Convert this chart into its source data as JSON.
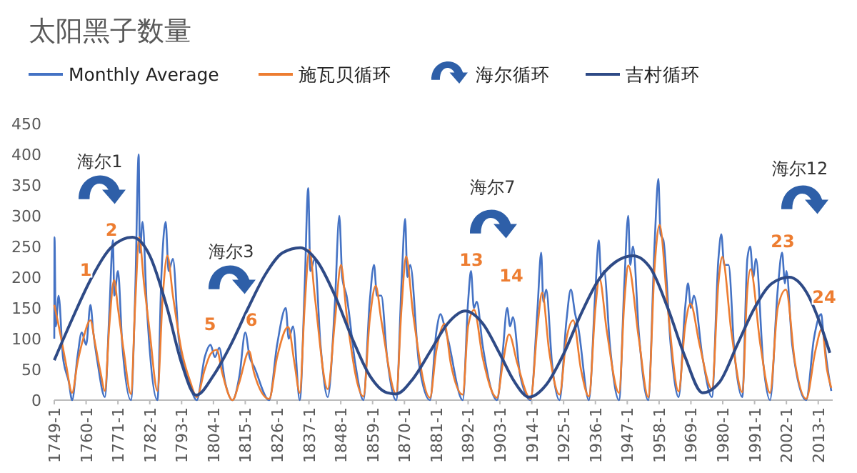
{
  "chart_data": {
    "type": "line",
    "title": "太阳黑子数量",
    "xlim": [
      "1749-01",
      "2018-01"
    ],
    "xticks": [
      {
        "value": "1749-01",
        "label": "1749-1"
      },
      {
        "value": "1760-01",
        "label": "1760-1"
      },
      {
        "value": "1771-01",
        "label": "1771-1"
      },
      {
        "value": "1782-01",
        "label": "1782-1"
      },
      {
        "value": "1793-01",
        "label": "1793-1"
      },
      {
        "value": "1804-01",
        "label": "1804-1"
      },
      {
        "value": "1815-01",
        "label": "1815-1"
      },
      {
        "value": "1826-01",
        "label": "1826-1"
      },
      {
        "value": "1837-01",
        "label": "1837-1"
      },
      {
        "value": "1848-01",
        "label": "1848-1"
      },
      {
        "value": "1859-01",
        "label": "1859-1"
      },
      {
        "value": "1870-01",
        "label": "1870-1"
      },
      {
        "value": "1881-01",
        "label": "1881-1"
      },
      {
        "value": "1892-01",
        "label": "1892-1"
      },
      {
        "value": "1903-01",
        "label": "1903-1"
      },
      {
        "value": "1914-01",
        "label": "1914-1"
      },
      {
        "value": "1925-01",
        "label": "1925-1"
      },
      {
        "value": "1936-01",
        "label": "1936-1"
      },
      {
        "value": "1947-01",
        "label": "1947-1"
      },
      {
        "value": "1958-01",
        "label": "1958-1"
      },
      {
        "value": "1969-01",
        "label": "1969-1"
      },
      {
        "value": "1980-01",
        "label": "1980-1"
      },
      {
        "value": "1991-01",
        "label": "1991-1"
      },
      {
        "value": "2002-01",
        "label": "2002-1"
      },
      {
        "value": "2013-01",
        "label": "2013-1"
      }
    ],
    "ylim": [
      0,
      450
    ],
    "yticks": [
      0,
      50,
      100,
      150,
      200,
      250,
      300,
      350,
      400,
      450
    ],
    "grid": false,
    "legend": "top",
    "marker": "none",
    "series": [
      {
        "name": "Monthly Average",
        "color": "#4472c4",
        "x": [
          "1749-01",
          "1749-02",
          "1749-07",
          "1750-07",
          "1752-01",
          "1754-01",
          "1755-03",
          "1757-01",
          "1758-07",
          "1760-01",
          "1761-07",
          "1762-07",
          "1764-01",
          "1766-07",
          "1768-01",
          "1769-04",
          "1769-10",
          "1771-01",
          "1772-07",
          "1775-07",
          "1777-01",
          "1778-03",
          "1778-08",
          "1779-07",
          "1781-01",
          "1784-09",
          "1786-01",
          "1787-07",
          "1788-07",
          "1790-01",
          "1792-01",
          "1795-01",
          "1798-04",
          "1801-01",
          "1803-01",
          "1804-07",
          "1806-01",
          "1808-01",
          "1810-08",
          "1813-01",
          "1815-01",
          "1816-07",
          "1818-01",
          "1823-04",
          "1826-01",
          "1829-01",
          "1830-01",
          "1831-07",
          "1833-11",
          "1835-07",
          "1836-10",
          "1837-07",
          "1839-01",
          "1841-01",
          "1843-07",
          "1846-01",
          "1847-07",
          "1848-07",
          "1850-01",
          "1853-01",
          "1855-11",
          "1858-01",
          "1859-07",
          "1860-07",
          "1862-01",
          "1864-01",
          "1867-03",
          "1869-01",
          "1870-04",
          "1871-01",
          "1872-01",
          "1875-01",
          "1878-11",
          "1881-01",
          "1882-07",
          "1883-11",
          "1885-01",
          "1890-03",
          "1892-01",
          "1893-01",
          "1894-01",
          "1895-01",
          "1897-01",
          "1902-01",
          "1904-01",
          "1905-07",
          "1906-07",
          "1907-07",
          "1910-01",
          "1913-08",
          "1916-01",
          "1917-04",
          "1918-01",
          "1919-01",
          "1921-01",
          "1923-08",
          "1926-01",
          "1927-07",
          "1929-01",
          "1930-01",
          "1933-10",
          "1936-01",
          "1937-03",
          "1938-01",
          "1939-01",
          "1941-01",
          "1944-03",
          "1946-01",
          "1947-05",
          "1948-01",
          "1949-01",
          "1951-01",
          "1954-04",
          "1956-07",
          "1957-10",
          "1958-07",
          "1959-07",
          "1962-01",
          "1964-10",
          "1967-01",
          "1968-01",
          "1969-01",
          "1970-01",
          "1973-01",
          "1976-04",
          "1978-07",
          "1979-07",
          "1980-07",
          "1982-01",
          "1984-01",
          "1986-10",
          "1988-07",
          "1989-07",
          "1990-07",
          "1991-07",
          "1994-01",
          "1996-05",
          "1999-01",
          "2000-07",
          "2001-07",
          "2002-01",
          "2004-01",
          "2008-11",
          "2011-07",
          "2014-01",
          "2014-10",
          "2016-01",
          "2017-07"
        ],
        "values": [
          100,
          265,
          120,
          170,
          70,
          30,
          0,
          70,
          110,
          90,
          155,
          110,
          60,
          5,
          140,
          260,
          170,
          210,
          90,
          0,
          180,
          400,
          240,
          290,
          150,
          0,
          200,
          290,
          210,
          230,
          100,
          40,
          0,
          70,
          90,
          70,
          85,
          30,
          0,
          40,
          110,
          70,
          55,
          0,
          90,
          150,
          100,
          120,
          0,
          180,
          345,
          210,
          230,
          90,
          5,
          160,
          300,
          200,
          170,
          60,
          0,
          160,
          220,
          170,
          170,
          70,
          0,
          190,
          295,
          200,
          220,
          60,
          0,
          110,
          140,
          120,
          100,
          0,
          160,
          210,
          150,
          160,
          90,
          0,
          80,
          150,
          120,
          135,
          40,
          0,
          150,
          240,
          160,
          180,
          60,
          0,
          130,
          180,
          140,
          120,
          0,
          180,
          260,
          200,
          210,
          90,
          0,
          190,
          300,
          220,
          250,
          110,
          0,
          260,
          360,
          270,
          260,
          90,
          5,
          150,
          190,
          150,
          170,
          70,
          5,
          230,
          270,
          220,
          220,
          80,
          5,
          230,
          250,
          200,
          230,
          60,
          0,
          180,
          240,
          190,
          210,
          90,
          0,
          100,
          140,
          110,
          60,
          15
        ]
      },
      {
        "name": "施瓦贝循环",
        "color": "#ed7d31",
        "x": [
          "1749-01",
          "1751-01",
          "1753-01",
          "1755-03",
          "1757-01",
          "1759-01",
          "1761-07",
          "1763-01",
          "1765-01",
          "1766-07",
          "1768-01",
          "1769-09",
          "1771-01",
          "1773-01",
          "1775-07",
          "1777-01",
          "1778-05",
          "1780-01",
          "1782-01",
          "1784-09",
          "1786-07",
          "1788-02",
          "1790-01",
          "1793-01",
          "1796-01",
          "1798-04",
          "1801-01",
          "1803-01",
          "1805-03",
          "1807-01",
          "1810-08",
          "1813-01",
          "1816-05",
          "1818-01",
          "1823-04",
          "1826-01",
          "1829-11",
          "1832-01",
          "1833-11",
          "1835-07",
          "1837-03",
          "1839-01",
          "1843-07",
          "1846-01",
          "1848-02",
          "1850-01",
          "1855-11",
          "1858-01",
          "1860-02",
          "1862-01",
          "1867-03",
          "1869-01",
          "1870-08",
          "1873-01",
          "1878-11",
          "1881-01",
          "1883-11",
          "1886-01",
          "1890-03",
          "1892-01",
          "1894-02",
          "1897-01",
          "1902-01",
          "1904-01",
          "1906-03",
          "1909-01",
          "1913-08",
          "1916-01",
          "1917-08",
          "1920-01",
          "1923-08",
          "1926-01",
          "1928-05",
          "1931-01",
          "1933-10",
          "1936-01",
          "1937-05",
          "1940-01",
          "1944-03",
          "1946-01",
          "1947-05",
          "1951-01",
          "1954-04",
          "1956-07",
          "1958-03",
          "1961-01",
          "1964-10",
          "1967-01",
          "1968-11",
          "1972-01",
          "1976-04",
          "1978-07",
          "1979-11",
          "1983-01",
          "1986-10",
          "1988-07",
          "1989-08",
          "1993-01",
          "1996-05",
          "1999-01",
          "2001-11",
          "2005-01",
          "2008-11",
          "2012-01",
          "2014-04",
          "2016-01",
          "2017-07"
        ],
        "values": [
          155,
          110,
          60,
          12,
          60,
          100,
          130,
          95,
          45,
          15,
          120,
          195,
          150,
          80,
          10,
          160,
          265,
          190,
          110,
          15,
          170,
          235,
          170,
          80,
          30,
          5,
          50,
          75,
          82,
          45,
          0,
          30,
          80,
          45,
          2,
          70,
          119,
          60,
          12,
          150,
          245,
          170,
          18,
          130,
          220,
          140,
          6,
          130,
          186,
          130,
          10,
          150,
          234,
          140,
          4,
          80,
          124,
          60,
          9,
          120,
          147,
          70,
          4,
          60,
          107,
          60,
          2,
          120,
          175,
          80,
          9,
          100,
          130,
          50,
          6,
          150,
          199,
          110,
          12,
          160,
          219,
          100,
          5,
          220,
          285,
          150,
          14,
          120,
          157,
          90,
          18,
          190,
          233,
          110,
          13,
          180,
          213,
          90,
          12,
          150,
          180,
          60,
          2,
          80,
          116,
          50,
          20
        ]
      },
      {
        "name": "吉村循环",
        "color": "#2e4a86",
        "x": [
          "1749-01",
          "1755-01",
          "1762-01",
          "1769-01",
          "1776-01",
          "1782-01",
          "1788-01",
          "1793-01",
          "1798-01",
          "1804-01",
          "1810-01",
          "1816-01",
          "1822-01",
          "1828-01",
          "1834-01",
          "1840-01",
          "1846-01",
          "1852-01",
          "1858-01",
          "1864-01",
          "1867-01",
          "1873-01",
          "1879-01",
          "1885-01",
          "1891-01",
          "1897-01",
          "1903-01",
          "1908-01",
          "1913-01",
          "1919-01",
          "1925-01",
          "1931-01",
          "1937-01",
          "1943-01",
          "1949-01",
          "1955-01",
          "1961-01",
          "1967-01",
          "1973-01",
          "1979-01",
          "1985-01",
          "1991-01",
          "1997-01",
          "2003-01",
          "2009-01",
          "2014-01",
          "2017-01"
        ],
        "values": [
          65,
          130,
          200,
          250,
          265,
          235,
          150,
          60,
          8,
          40,
          90,
          150,
          205,
          240,
          248,
          225,
          170,
          100,
          40,
          12,
          10,
          35,
          80,
          125,
          145,
          125,
          75,
          30,
          5,
          25,
          75,
          140,
          195,
          225,
          235,
          215,
          150,
          70,
          12,
          30,
          90,
          150,
          190,
          200,
          175,
          120,
          77
        ]
      }
    ],
    "annotations": [
      "海尔1",
      "海尔3",
      "海尔7",
      "海尔12",
      "1",
      "2",
      "5",
      "6",
      "13",
      "14",
      "23",
      "24",
      "海尔循环"
    ]
  }
}
